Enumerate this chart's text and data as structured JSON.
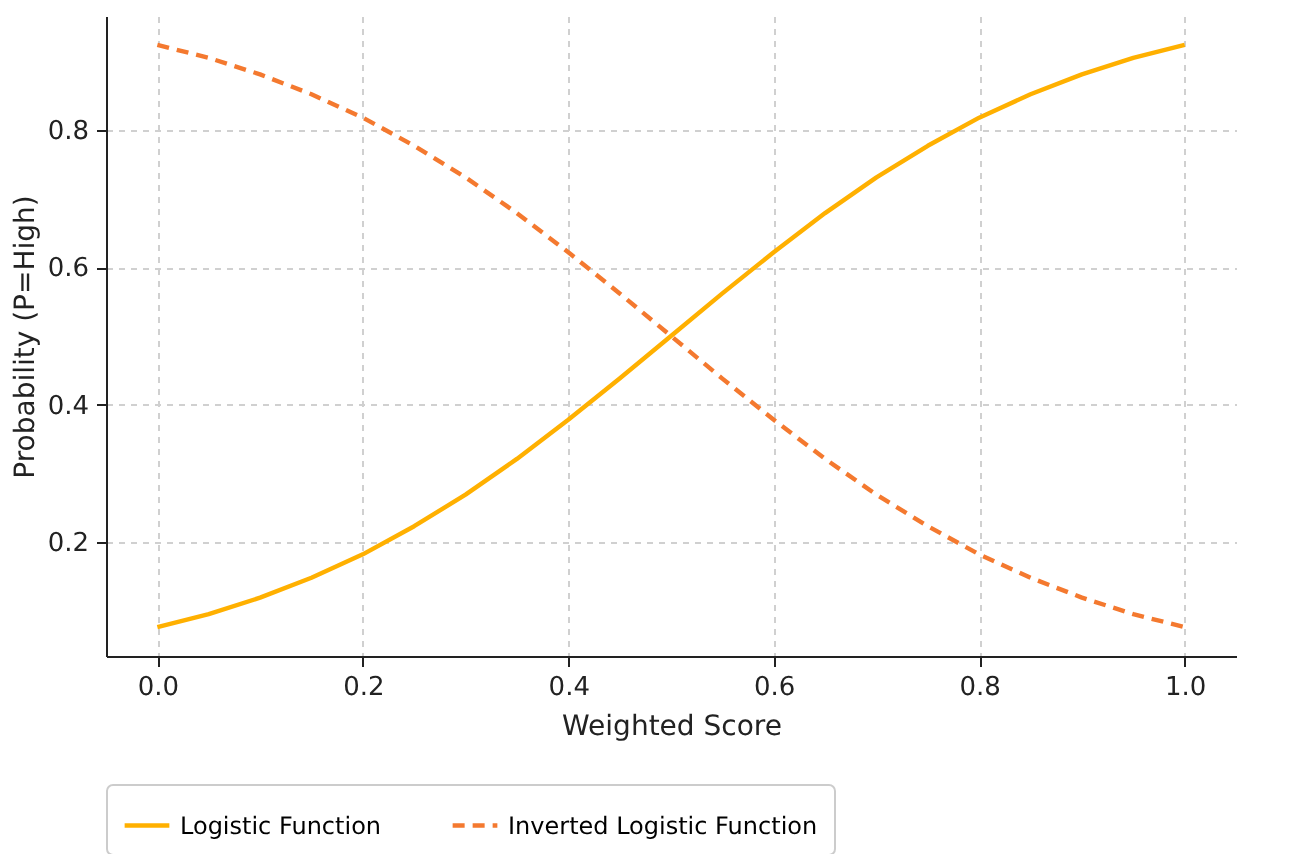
{
  "chart_data": {
    "type": "line",
    "xlabel": "Weighted Score",
    "ylabel": "Probability (P=High)",
    "x": [
      0,
      0.05,
      0.1,
      0.15,
      0.2,
      0.25,
      0.3,
      0.35,
      0.4,
      0.45,
      0.5,
      0.55,
      0.6,
      0.65,
      0.7,
      0.75,
      0.8,
      0.85,
      0.9,
      0.95,
      1.0
    ],
    "series": [
      {
        "name": "Logistic Function",
        "color": "#ffb000",
        "line_style": "solid",
        "values": [
          0.076,
          0.095,
          0.119,
          0.148,
          0.182,
          0.223,
          0.269,
          0.321,
          0.378,
          0.438,
          0.5,
          0.562,
          0.622,
          0.679,
          0.731,
          0.777,
          0.818,
          0.852,
          0.881,
          0.905,
          0.924
        ]
      },
      {
        "name": "Inverted Logistic Function",
        "color": "#f4792f",
        "line_style": "dashed",
        "values": [
          0.924,
          0.905,
          0.881,
          0.852,
          0.818,
          0.777,
          0.731,
          0.679,
          0.622,
          0.562,
          0.5,
          0.438,
          0.378,
          0.321,
          0.269,
          0.223,
          0.182,
          0.148,
          0.119,
          0.095,
          0.076
        ]
      }
    ],
    "xlim": [
      -0.05,
      1.05
    ],
    "xticks": [
      {
        "value": 0,
        "label": "0.0"
      },
      0.2,
      0.4,
      0.6,
      0.8,
      {
        "value": 1,
        "label": "1.0"
      }
    ],
    "ylim": [
      0.034,
      0.966
    ],
    "yticks": [
      0.2,
      0.4,
      0.6,
      0.8
    ],
    "grid": true,
    "legend": "bottom",
    "marker": "none"
  }
}
